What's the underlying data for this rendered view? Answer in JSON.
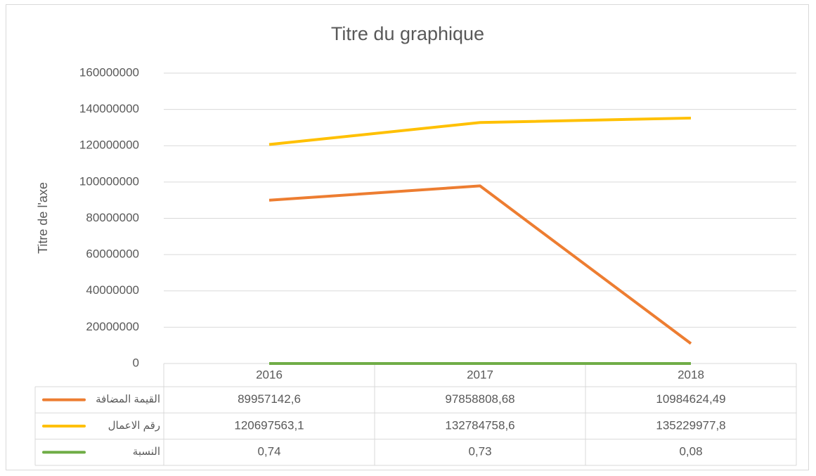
{
  "chart_data": {
    "type": "line",
    "title": "Titre du graphique",
    "y_label": "Titre de l'axe",
    "categories": [
      "2016",
      "2017",
      "2018"
    ],
    "series": [
      {
        "name": "القيمة المضافة",
        "color": "#ED7D31",
        "values": [
          89957142.6,
          97858808.68,
          10984624.49
        ],
        "value_labels": [
          "89957142,6",
          "97858808,68",
          "10984624,49"
        ]
      },
      {
        "name": "رقم الاعمال",
        "color": "#FFC000",
        "values": [
          120697563.1,
          132784758.6,
          135229977.8
        ],
        "value_labels": [
          "120697563,1",
          "132784758,6",
          "135229977,8"
        ]
      },
      {
        "name": "النسبة",
        "color": "#70AD47",
        "values": [
          0.74,
          0.73,
          0.08
        ],
        "value_labels": [
          "0,74",
          "0,73",
          "0,08"
        ]
      }
    ],
    "ylim": [
      0,
      160000000
    ],
    "yticks": [
      0,
      20000000,
      40000000,
      60000000,
      80000000,
      100000000,
      120000000,
      140000000,
      160000000
    ],
    "grid": true,
    "data_table": true
  }
}
